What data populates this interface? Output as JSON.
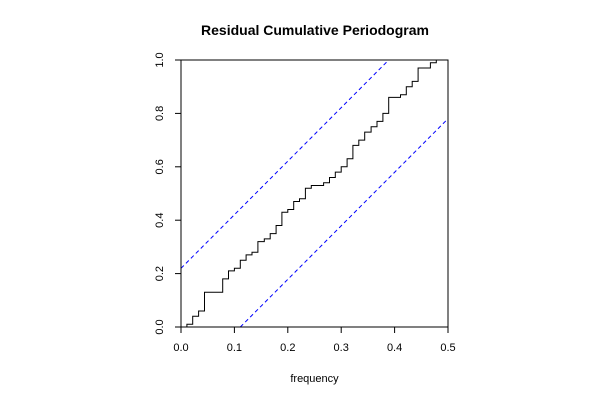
{
  "chart_data": {
    "type": "line",
    "title": "Residual Cumulative Periodogram",
    "xlabel": "frequency",
    "ylabel": "",
    "xlim": [
      0,
      0.5
    ],
    "ylim": [
      0,
      1
    ],
    "xticks": [
      "0.0",
      "0.1",
      "0.2",
      "0.3",
      "0.4",
      "0.5"
    ],
    "yticks": [
      "0.0",
      "0.2",
      "0.4",
      "0.6",
      "0.8",
      "1.0"
    ],
    "grid": false,
    "series": [
      {
        "style": "step",
        "color": "#000000",
        "x": [
          0.0,
          0.011,
          0.022,
          0.033,
          0.044,
          0.056,
          0.067,
          0.078,
          0.089,
          0.1,
          0.111,
          0.122,
          0.133,
          0.144,
          0.156,
          0.167,
          0.178,
          0.189,
          0.2,
          0.211,
          0.222,
          0.233,
          0.244,
          0.256,
          0.267,
          0.278,
          0.289,
          0.3,
          0.311,
          0.322,
          0.333,
          0.344,
          0.356,
          0.367,
          0.378,
          0.389,
          0.4,
          0.411,
          0.422,
          0.433,
          0.444,
          0.456,
          0.467,
          0.478,
          0.489,
          0.5
        ],
        "y": [
          0.0,
          0.01,
          0.04,
          0.06,
          0.13,
          0.13,
          0.13,
          0.18,
          0.21,
          0.22,
          0.25,
          0.27,
          0.28,
          0.32,
          0.33,
          0.35,
          0.38,
          0.43,
          0.44,
          0.47,
          0.48,
          0.52,
          0.53,
          0.53,
          0.54,
          0.56,
          0.58,
          0.6,
          0.63,
          0.68,
          0.7,
          0.73,
          0.75,
          0.77,
          0.8,
          0.86,
          0.86,
          0.87,
          0.9,
          0.92,
          0.97,
          0.97,
          0.99,
          1.0,
          1.0,
          1.0
        ]
      },
      {
        "style": "dashed",
        "color": "#0000ff",
        "x": [
          0.0,
          0.389
        ],
        "y": [
          0.22,
          1.0
        ]
      },
      {
        "style": "dashed",
        "color": "#0000ff",
        "x": [
          0.111,
          0.5
        ],
        "y": [
          0.0,
          0.78
        ]
      }
    ]
  }
}
